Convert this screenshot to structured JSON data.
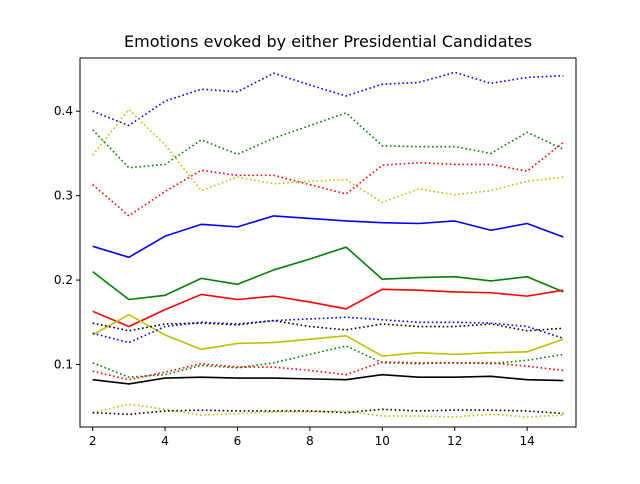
{
  "chart_data": {
    "type": "line",
    "title": "Emotions evoked by either Presidential Candidates",
    "xlabel": "",
    "ylabel": "",
    "xlim": [
      1.65,
      15.35
    ],
    "ylim": [
      0.026,
      0.463
    ],
    "x_ticks": [
      2,
      4,
      6,
      8,
      10,
      12,
      14
    ],
    "y_ticks": [
      0.1,
      0.2,
      0.3,
      0.4
    ],
    "grid": false,
    "legend": false,
    "x": [
      2,
      3,
      4,
      5,
      6,
      7,
      8,
      9,
      10,
      11,
      12,
      13,
      14,
      15
    ],
    "series": [
      {
        "color": "#0000ff",
        "style": "dotted",
        "values": [
          0.4,
          0.383,
          0.412,
          0.426,
          0.423,
          0.445,
          0.431,
          0.418,
          0.432,
          0.434,
          0.446,
          0.433,
          0.44,
          0.442
        ]
      },
      {
        "color": "#008000",
        "style": "dotted",
        "values": [
          0.378,
          0.333,
          0.337,
          0.366,
          0.349,
          0.368,
          0.383,
          0.398,
          0.359,
          0.358,
          0.358,
          0.35,
          0.375,
          0.355
        ]
      },
      {
        "color": "#bfbf00",
        "style": "dotted",
        "values": [
          0.348,
          0.402,
          0.36,
          0.306,
          0.322,
          0.314,
          0.317,
          0.319,
          0.292,
          0.308,
          0.301,
          0.306,
          0.317,
          0.322
        ]
      },
      {
        "color": "#ff0000",
        "style": "dotted",
        "values": [
          0.313,
          0.276,
          0.305,
          0.33,
          0.324,
          0.324,
          0.313,
          0.302,
          0.336,
          0.339,
          0.337,
          0.337,
          0.329,
          0.363
        ]
      },
      {
        "color": "#0000ff",
        "style": "solid",
        "values": [
          0.24,
          0.227,
          0.252,
          0.266,
          0.263,
          0.276,
          0.273,
          0.27,
          0.268,
          0.267,
          0.27,
          0.259,
          0.267,
          0.251
        ]
      },
      {
        "color": "#008000",
        "style": "solid",
        "values": [
          0.21,
          0.177,
          0.182,
          0.202,
          0.195,
          0.212,
          0.225,
          0.239,
          0.201,
          0.203,
          0.204,
          0.199,
          0.204,
          0.186
        ]
      },
      {
        "color": "#ff0000",
        "style": "solid",
        "values": [
          0.163,
          0.145,
          0.165,
          0.183,
          0.177,
          0.181,
          0.174,
          0.166,
          0.189,
          0.188,
          0.186,
          0.185,
          0.181,
          0.188
        ]
      },
      {
        "color": "#bfbf00",
        "style": "solid",
        "values": [
          0.135,
          0.159,
          0.135,
          0.118,
          0.125,
          0.126,
          0.13,
          0.134,
          0.11,
          0.114,
          0.112,
          0.114,
          0.115,
          0.13
        ]
      },
      {
        "color": "#000000",
        "style": "dotted",
        "values": [
          0.149,
          0.14,
          0.148,
          0.149,
          0.147,
          0.152,
          0.145,
          0.141,
          0.148,
          0.145,
          0.145,
          0.148,
          0.14,
          0.143
        ]
      },
      {
        "color": "#0000ff",
        "style": "dotted",
        "values": [
          0.137,
          0.126,
          0.145,
          0.15,
          0.148,
          0.152,
          0.154,
          0.156,
          0.153,
          0.15,
          0.15,
          0.149,
          0.145,
          0.131
        ]
      },
      {
        "color": "#008000",
        "style": "dotted",
        "values": [
          0.102,
          0.085,
          0.088,
          0.099,
          0.096,
          0.102,
          0.112,
          0.122,
          0.102,
          0.101,
          0.102,
          0.101,
          0.105,
          0.112
        ]
      },
      {
        "color": "#ff0000",
        "style": "dotted",
        "values": [
          0.092,
          0.082,
          0.091,
          0.101,
          0.097,
          0.097,
          0.093,
          0.088,
          0.103,
          0.102,
          0.102,
          0.102,
          0.098,
          0.093
        ]
      },
      {
        "color": "#000000",
        "style": "solid",
        "values": [
          0.082,
          0.077,
          0.084,
          0.085,
          0.084,
          0.084,
          0.083,
          0.082,
          0.088,
          0.085,
          0.085,
          0.086,
          0.082,
          0.081
        ]
      },
      {
        "color": "#bfbf00",
        "style": "dotted",
        "values": [
          0.043,
          0.053,
          0.047,
          0.04,
          0.042,
          0.044,
          0.044,
          0.045,
          0.039,
          0.039,
          0.038,
          0.041,
          0.038,
          0.04
        ]
      },
      {
        "color": "#000000",
        "style": "dotted",
        "values": [
          0.043,
          0.041,
          0.045,
          0.046,
          0.045,
          0.045,
          0.045,
          0.043,
          0.047,
          0.045,
          0.046,
          0.046,
          0.045,
          0.042
        ]
      }
    ]
  }
}
